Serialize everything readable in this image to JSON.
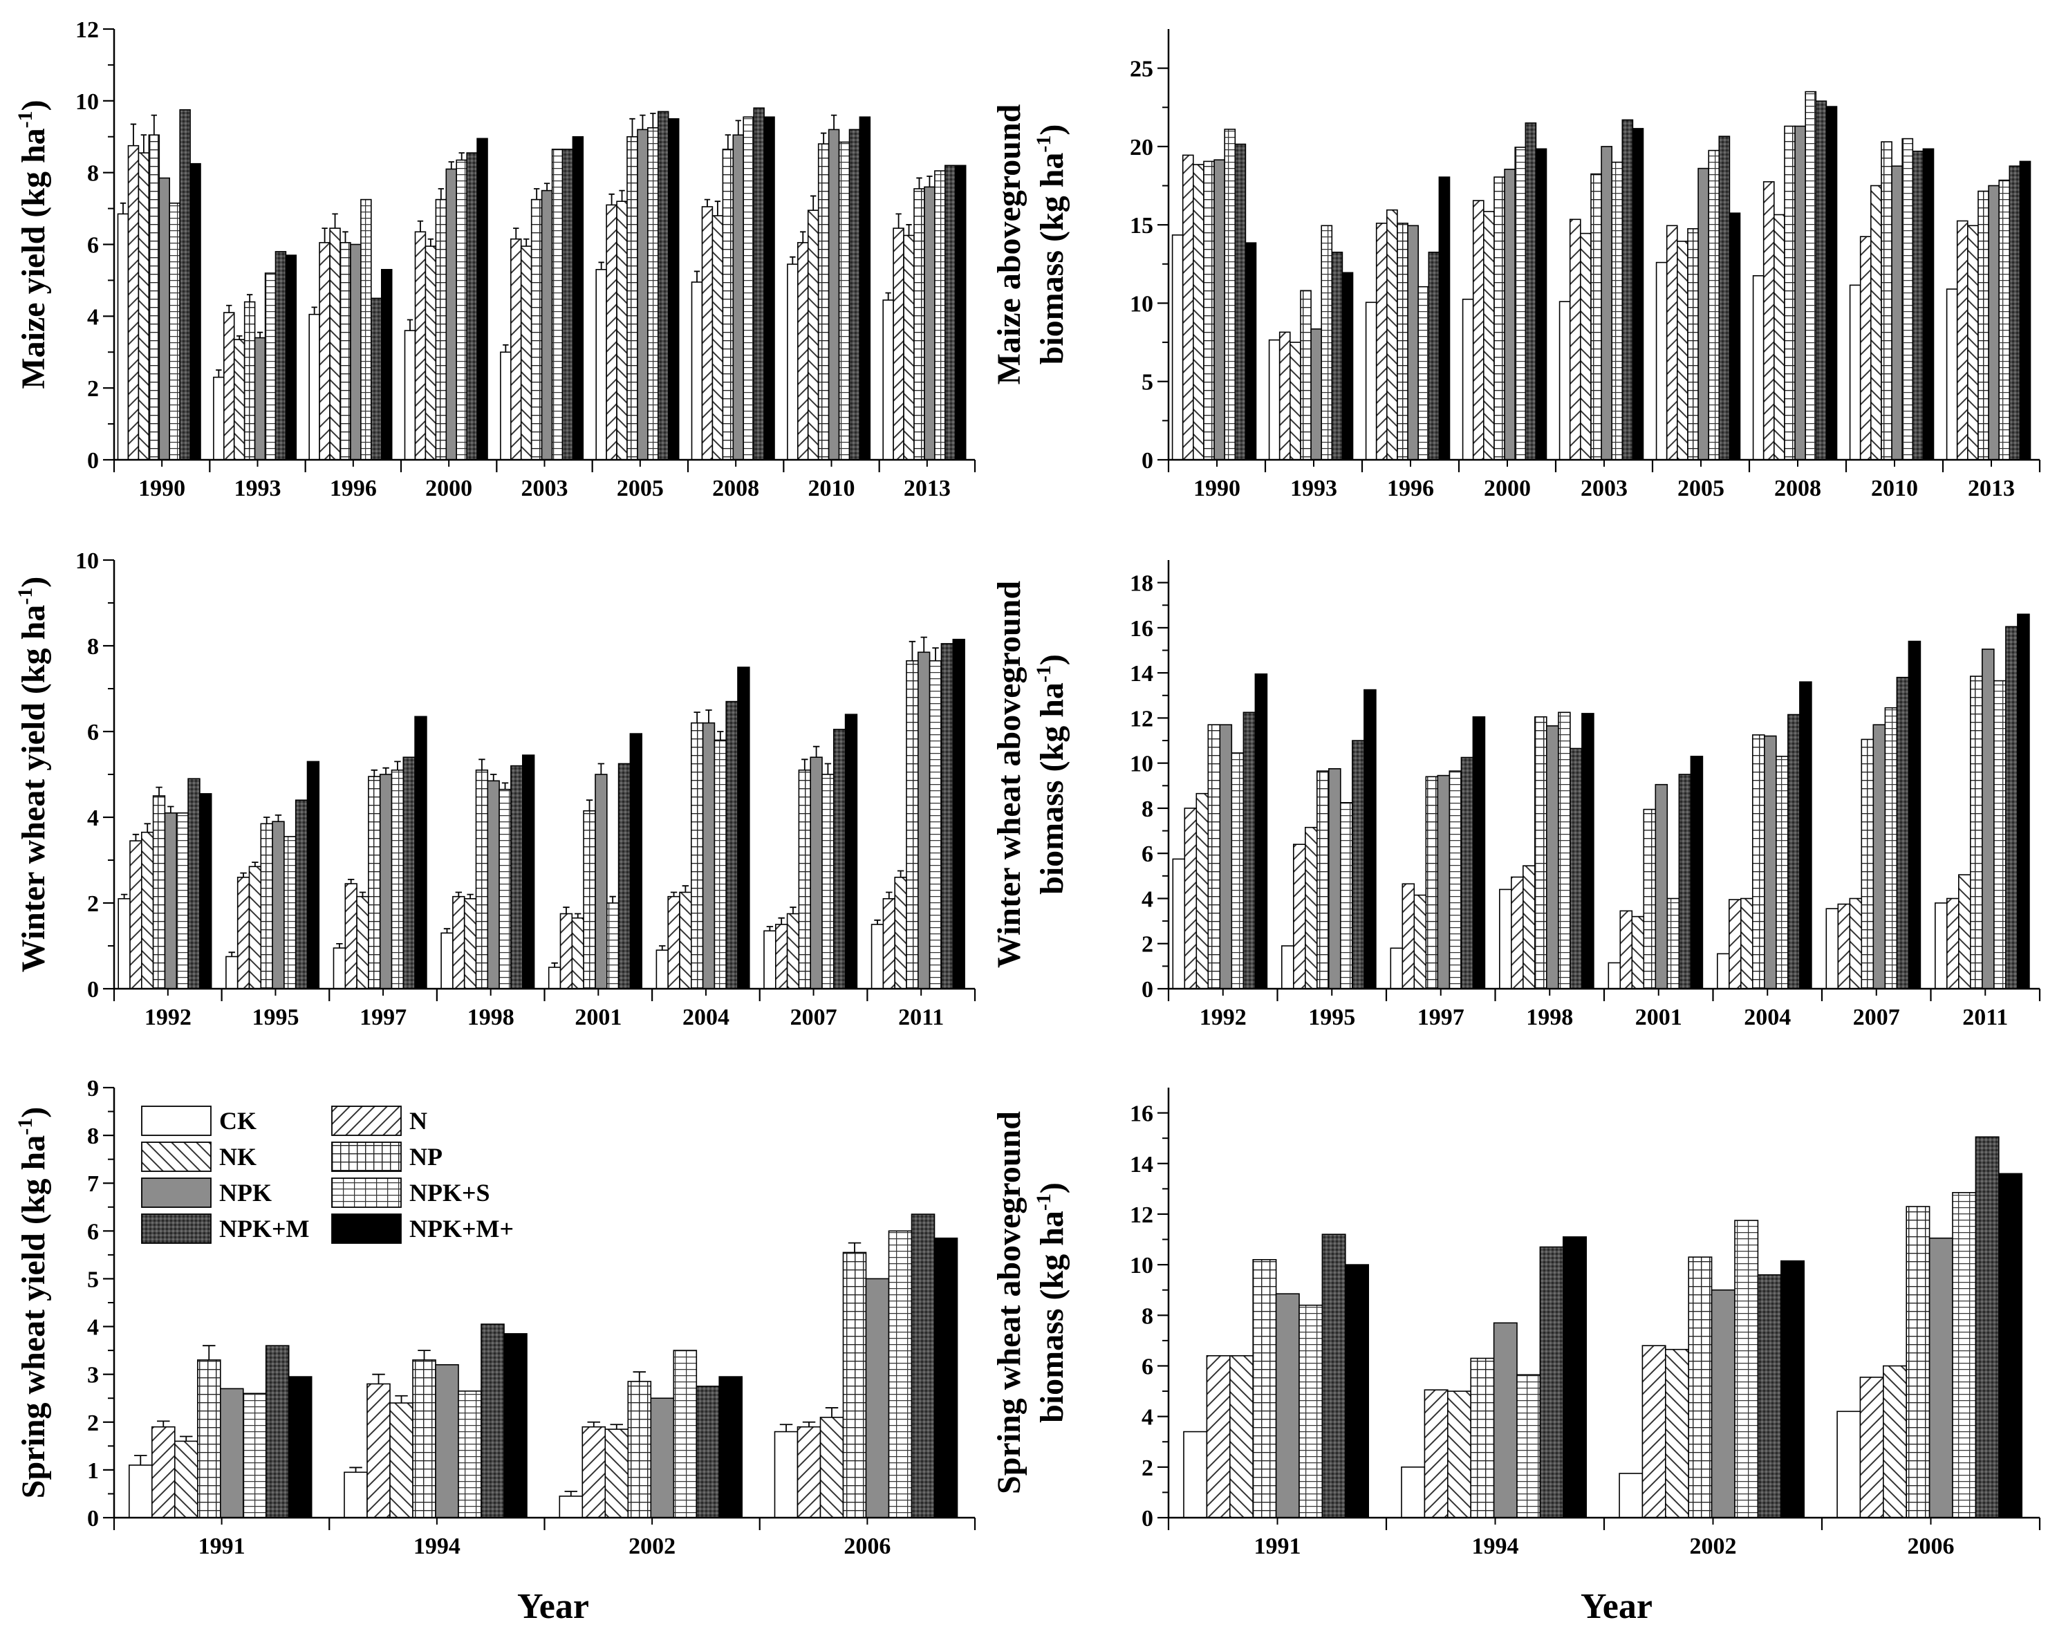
{
  "figure": {
    "xlabel": "Year",
    "treatments": [
      "CK",
      "N",
      "NK",
      "NP",
      "NPK",
      "NPK+S",
      "NPK+M",
      "NPK+M+"
    ]
  },
  "legend": {
    "items": [
      {
        "key": "CK",
        "label": "CK"
      },
      {
        "key": "N",
        "label": "N"
      },
      {
        "key": "NK",
        "label": "NK"
      },
      {
        "key": "NP",
        "label": "NP"
      },
      {
        "key": "NPK",
        "label": "NPK"
      },
      {
        "key": "NPK+S",
        "label": "NPK+S"
      },
      {
        "key": "NPK+M",
        "label": "NPK+M"
      },
      {
        "key": "NPK+M+",
        "label": "NPK+M+"
      }
    ]
  },
  "chart_data": [
    {
      "id": "maize-yield",
      "type": "bar",
      "ylabel_line1": "",
      "ylabel_line2": "Maize yield (kg ha",
      "ylabel_sup": "-1",
      "ylabel_close": ")",
      "ylim": [
        0,
        12
      ],
      "yticks": [
        0,
        2,
        4,
        6,
        8,
        10,
        12
      ],
      "categories": [
        "1990",
        "1993",
        "1996",
        "2000",
        "2003",
        "2005",
        "2008",
        "2010",
        "2013"
      ],
      "values": [
        [
          6.85,
          8.75,
          8.55,
          9.05,
          7.85,
          7.15,
          9.75,
          8.25
        ],
        [
          2.3,
          4.1,
          3.35,
          4.4,
          3.4,
          5.2,
          5.8,
          5.7
        ],
        [
          4.05,
          6.05,
          6.45,
          6.05,
          6.0,
          7.25,
          4.5,
          5.3
        ],
        [
          3.6,
          6.35,
          5.95,
          7.25,
          8.1,
          8.35,
          8.55,
          8.95
        ],
        [
          3.0,
          6.15,
          5.95,
          7.25,
          7.5,
          8.65,
          8.65,
          9.0
        ],
        [
          5.3,
          7.1,
          7.2,
          9.0,
          9.2,
          9.25,
          9.7,
          9.5
        ],
        [
          4.95,
          7.05,
          6.8,
          8.65,
          9.05,
          9.55,
          9.8,
          9.55
        ],
        [
          5.45,
          6.05,
          6.95,
          8.8,
          9.2,
          8.85,
          9.2,
          9.55
        ],
        [
          4.45,
          6.45,
          6.25,
          7.55,
          7.6,
          8.05,
          8.2,
          8.2
        ]
      ],
      "errors": [
        [
          0.3,
          0.6,
          0.5,
          0.55,
          0,
          0,
          0,
          0
        ],
        [
          0.2,
          0.2,
          0.1,
          0.2,
          0.15,
          0,
          0,
          0
        ],
        [
          0.2,
          0.4,
          0.4,
          0.3,
          0,
          0,
          0,
          0
        ],
        [
          0.3,
          0.3,
          0.2,
          0.3,
          0.2,
          0.2,
          0,
          0
        ],
        [
          0.2,
          0.3,
          0.2,
          0.3,
          0.2,
          0,
          0,
          0
        ],
        [
          0.2,
          0.3,
          0.3,
          0.5,
          0.4,
          0.4,
          0,
          0
        ],
        [
          0.3,
          0.2,
          0.4,
          0.4,
          0.4,
          0,
          0,
          0
        ],
        [
          0.2,
          0.3,
          0.4,
          0.3,
          0.4,
          0,
          0,
          0
        ],
        [
          0.2,
          0.4,
          0.3,
          0.3,
          0.3,
          0,
          0,
          0
        ]
      ]
    },
    {
      "id": "maize-biomass",
      "type": "bar",
      "ylabel_line1": "Maize aboveground",
      "ylabel_line2": "biomass (kg ha",
      "ylabel_sup": "-1",
      "ylabel_close": ")",
      "ylim": [
        0,
        27.5
      ],
      "yticks": [
        0,
        5,
        10,
        15,
        20,
        25
      ],
      "categories": [
        "1990",
        "1993",
        "1996",
        "2000",
        "2003",
        "2005",
        "2008",
        "2010",
        "2013"
      ],
      "values": [
        [
          14.35,
          19.45,
          18.85,
          19.05,
          19.15,
          21.1,
          20.15,
          13.85
        ],
        [
          7.65,
          8.15,
          7.5,
          10.8,
          8.35,
          14.95,
          13.25,
          11.95
        ],
        [
          10.05,
          15.1,
          15.95,
          15.1,
          14.95,
          11.05,
          13.25,
          18.05
        ],
        [
          10.25,
          16.55,
          15.85,
          18.05,
          18.55,
          19.95,
          21.5,
          19.85
        ],
        [
          10.1,
          15.35,
          14.45,
          18.25,
          20.0,
          19.0,
          21.7,
          21.15
        ],
        [
          12.6,
          14.95,
          13.95,
          14.75,
          18.6,
          19.75,
          20.65,
          15.75
        ],
        [
          11.75,
          17.75,
          15.65,
          21.3,
          21.3,
          23.5,
          22.9,
          22.55
        ],
        [
          11.15,
          14.25,
          17.5,
          20.3,
          18.75,
          20.5,
          19.7,
          19.85
        ],
        [
          10.9,
          15.25,
          14.95,
          17.15,
          17.5,
          17.85,
          18.75,
          19.05
        ]
      ],
      "errors": [
        [
          0,
          0,
          0,
          0,
          0,
          0,
          0,
          0
        ],
        [
          0,
          0,
          0,
          0,
          0,
          0,
          0,
          0
        ],
        [
          0,
          0,
          0,
          0,
          0,
          0,
          0,
          0
        ],
        [
          0,
          0,
          0,
          0,
          0,
          0,
          0,
          0
        ],
        [
          0,
          0,
          0,
          0,
          0,
          0,
          0,
          0
        ],
        [
          0,
          0,
          0,
          0,
          0,
          0,
          0,
          0
        ],
        [
          0,
          0,
          0,
          0,
          0,
          0,
          0,
          0
        ],
        [
          0,
          0,
          0,
          0,
          0,
          0,
          0,
          0
        ],
        [
          0,
          0,
          0,
          0,
          0,
          0,
          0,
          0
        ]
      ]
    },
    {
      "id": "winter-wheat-yield",
      "type": "bar",
      "ylabel_line1": "",
      "ylabel_line2": "Winter wheat yield (kg ha",
      "ylabel_sup": "-1",
      "ylabel_close": ")",
      "ylim": [
        0,
        10
      ],
      "yticks": [
        0,
        2,
        4,
        6,
        8,
        10
      ],
      "categories": [
        "1992",
        "1995",
        "1997",
        "1998",
        "2001",
        "2004",
        "2007",
        "2011"
      ],
      "values": [
        [
          2.1,
          3.45,
          3.65,
          4.5,
          4.1,
          4.1,
          4.9,
          4.55
        ],
        [
          0.75,
          2.6,
          2.85,
          3.85,
          3.9,
          3.55,
          4.4,
          5.3
        ],
        [
          0.95,
          2.45,
          2.15,
          4.95,
          5.0,
          5.1,
          5.4,
          6.35
        ],
        [
          1.3,
          2.15,
          2.1,
          5.1,
          4.85,
          4.65,
          5.2,
          5.45
        ],
        [
          0.5,
          1.75,
          1.65,
          4.15,
          5.0,
          2.0,
          5.25,
          5.95
        ],
        [
          0.9,
          2.15,
          2.25,
          6.2,
          6.2,
          5.8,
          6.7,
          7.5
        ],
        [
          1.35,
          1.5,
          1.75,
          5.1,
          5.4,
          5.0,
          6.05,
          6.4
        ],
        [
          1.5,
          2.1,
          2.6,
          7.65,
          7.85,
          7.65,
          8.05,
          8.15
        ]
      ],
      "errors": [
        [
          0.1,
          0.15,
          0.2,
          0.2,
          0.15,
          0,
          0,
          0
        ],
        [
          0.1,
          0.1,
          0.1,
          0.15,
          0.15,
          0,
          0,
          0
        ],
        [
          0.1,
          0.1,
          0.1,
          0.15,
          0.15,
          0.2,
          0,
          0
        ],
        [
          0.1,
          0.1,
          0.1,
          0.25,
          0.15,
          0.15,
          0,
          0
        ],
        [
          0.1,
          0.15,
          0.1,
          0.25,
          0.25,
          0.15,
          0,
          0
        ],
        [
          0.1,
          0.1,
          0.15,
          0.25,
          0.3,
          0.2,
          0,
          0
        ],
        [
          0.1,
          0.15,
          0.15,
          0.25,
          0.25,
          0.25,
          0,
          0
        ],
        [
          0.1,
          0.15,
          0.15,
          0.45,
          0.35,
          0.3,
          0,
          0
        ]
      ]
    },
    {
      "id": "winter-wheat-biomass",
      "type": "bar",
      "ylabel_line1": "Winter wheat aboveground",
      "ylabel_line2": "biomass (kg ha",
      "ylabel_sup": "-1",
      "ylabel_close": ")",
      "ylim": [
        0,
        19
      ],
      "yticks": [
        0,
        2,
        4,
        6,
        8,
        10,
        12,
        14,
        16,
        18
      ],
      "categories": [
        "1992",
        "1995",
        "1997",
        "1998",
        "2001",
        "2004",
        "2007",
        "2011"
      ],
      "values": [
        [
          5.75,
          8.0,
          8.65,
          11.7,
          11.7,
          10.45,
          12.25,
          13.95
        ],
        [
          1.9,
          6.4,
          7.15,
          9.65,
          9.75,
          8.25,
          11.0,
          13.25
        ],
        [
          1.8,
          4.65,
          4.15,
          9.4,
          9.45,
          9.65,
          10.25,
          12.05
        ],
        [
          4.4,
          4.95,
          5.45,
          12.05,
          11.65,
          12.25,
          10.65,
          12.2
        ],
        [
          1.15,
          3.45,
          3.2,
          7.95,
          9.05,
          4.0,
          9.5,
          10.3
        ],
        [
          1.55,
          3.95,
          4.0,
          11.25,
          11.2,
          10.3,
          12.15,
          13.6
        ],
        [
          3.55,
          3.75,
          4.0,
          11.05,
          11.7,
          12.45,
          13.8,
          15.4
        ],
        [
          3.8,
          4.0,
          5.05,
          13.85,
          15.05,
          13.65,
          16.05,
          16.6
        ]
      ],
      "errors": [
        [
          0,
          0,
          0,
          0,
          0,
          0,
          0,
          0
        ],
        [
          0,
          0,
          0,
          0,
          0,
          0,
          0,
          0
        ],
        [
          0,
          0,
          0,
          0,
          0,
          0,
          0,
          0
        ],
        [
          0,
          0,
          0,
          0,
          0,
          0,
          0,
          0
        ],
        [
          0,
          0,
          0,
          0,
          0,
          0,
          0,
          0
        ],
        [
          0,
          0,
          0,
          0,
          0,
          0,
          0,
          0
        ],
        [
          0,
          0,
          0,
          0,
          0,
          0,
          0,
          0
        ],
        [
          0,
          0,
          0,
          0,
          0,
          0,
          0,
          0
        ]
      ]
    },
    {
      "id": "spring-wheat-yield",
      "type": "bar",
      "ylabel_line1": "",
      "ylabel_line2": "Spring wheat yield (kg ha",
      "ylabel_sup": "-1",
      "ylabel_close": ")",
      "ylim": [
        0,
        9
      ],
      "yticks": [
        0,
        1,
        2,
        3,
        4,
        5,
        6,
        7,
        8,
        9
      ],
      "categories": [
        "1991",
        "1994",
        "2002",
        "2006"
      ],
      "values": [
        [
          1.1,
          1.9,
          1.6,
          3.3,
          2.7,
          2.6,
          3.6,
          2.95
        ],
        [
          0.95,
          2.8,
          2.4,
          3.3,
          3.2,
          2.65,
          4.05,
          3.85
        ],
        [
          0.45,
          1.9,
          1.85,
          2.85,
          2.5,
          3.5,
          2.75,
          2.95
        ],
        [
          1.8,
          1.9,
          2.1,
          5.55,
          5.0,
          6.0,
          6.35,
          5.85
        ]
      ],
      "errors": [
        [
          0.2,
          0.12,
          0.1,
          0.3,
          0,
          0,
          0,
          0
        ],
        [
          0.1,
          0.2,
          0.15,
          0.2,
          0,
          0,
          0,
          0
        ],
        [
          0.1,
          0.1,
          0.1,
          0.2,
          0,
          0,
          0,
          0
        ],
        [
          0.15,
          0.1,
          0.2,
          0.2,
          0,
          0,
          0,
          0
        ]
      ]
    },
    {
      "id": "spring-wheat-biomass",
      "type": "bar",
      "ylabel_line1": "Spring wheat aboveground",
      "ylabel_line2": "biomass (kg ha",
      "ylabel_sup": "-1",
      "ylabel_close": ")",
      "ylim": [
        0,
        17
      ],
      "yticks": [
        0,
        2,
        4,
        6,
        8,
        10,
        12,
        14,
        16
      ],
      "categories": [
        "1991",
        "1994",
        "2002",
        "2006"
      ],
      "values": [
        [
          3.4,
          6.4,
          6.4,
          10.2,
          8.85,
          8.4,
          11.2,
          10.0
        ],
        [
          2.0,
          5.05,
          5.0,
          6.3,
          7.7,
          5.65,
          10.7,
          11.1
        ],
        [
          1.75,
          6.8,
          6.65,
          10.3,
          9.0,
          11.75,
          9.6,
          10.15
        ],
        [
          4.2,
          5.55,
          6.0,
          12.3,
          11.05,
          12.85,
          15.05,
          13.6
        ]
      ],
      "errors": [
        [
          0,
          0,
          0,
          0,
          0,
          0,
          0,
          0
        ],
        [
          0,
          0,
          0,
          0,
          0,
          0,
          0,
          0
        ],
        [
          0,
          0,
          0,
          0,
          0,
          0,
          0,
          0
        ],
        [
          0,
          0,
          0,
          0,
          0,
          0,
          0,
          0
        ]
      ]
    }
  ]
}
